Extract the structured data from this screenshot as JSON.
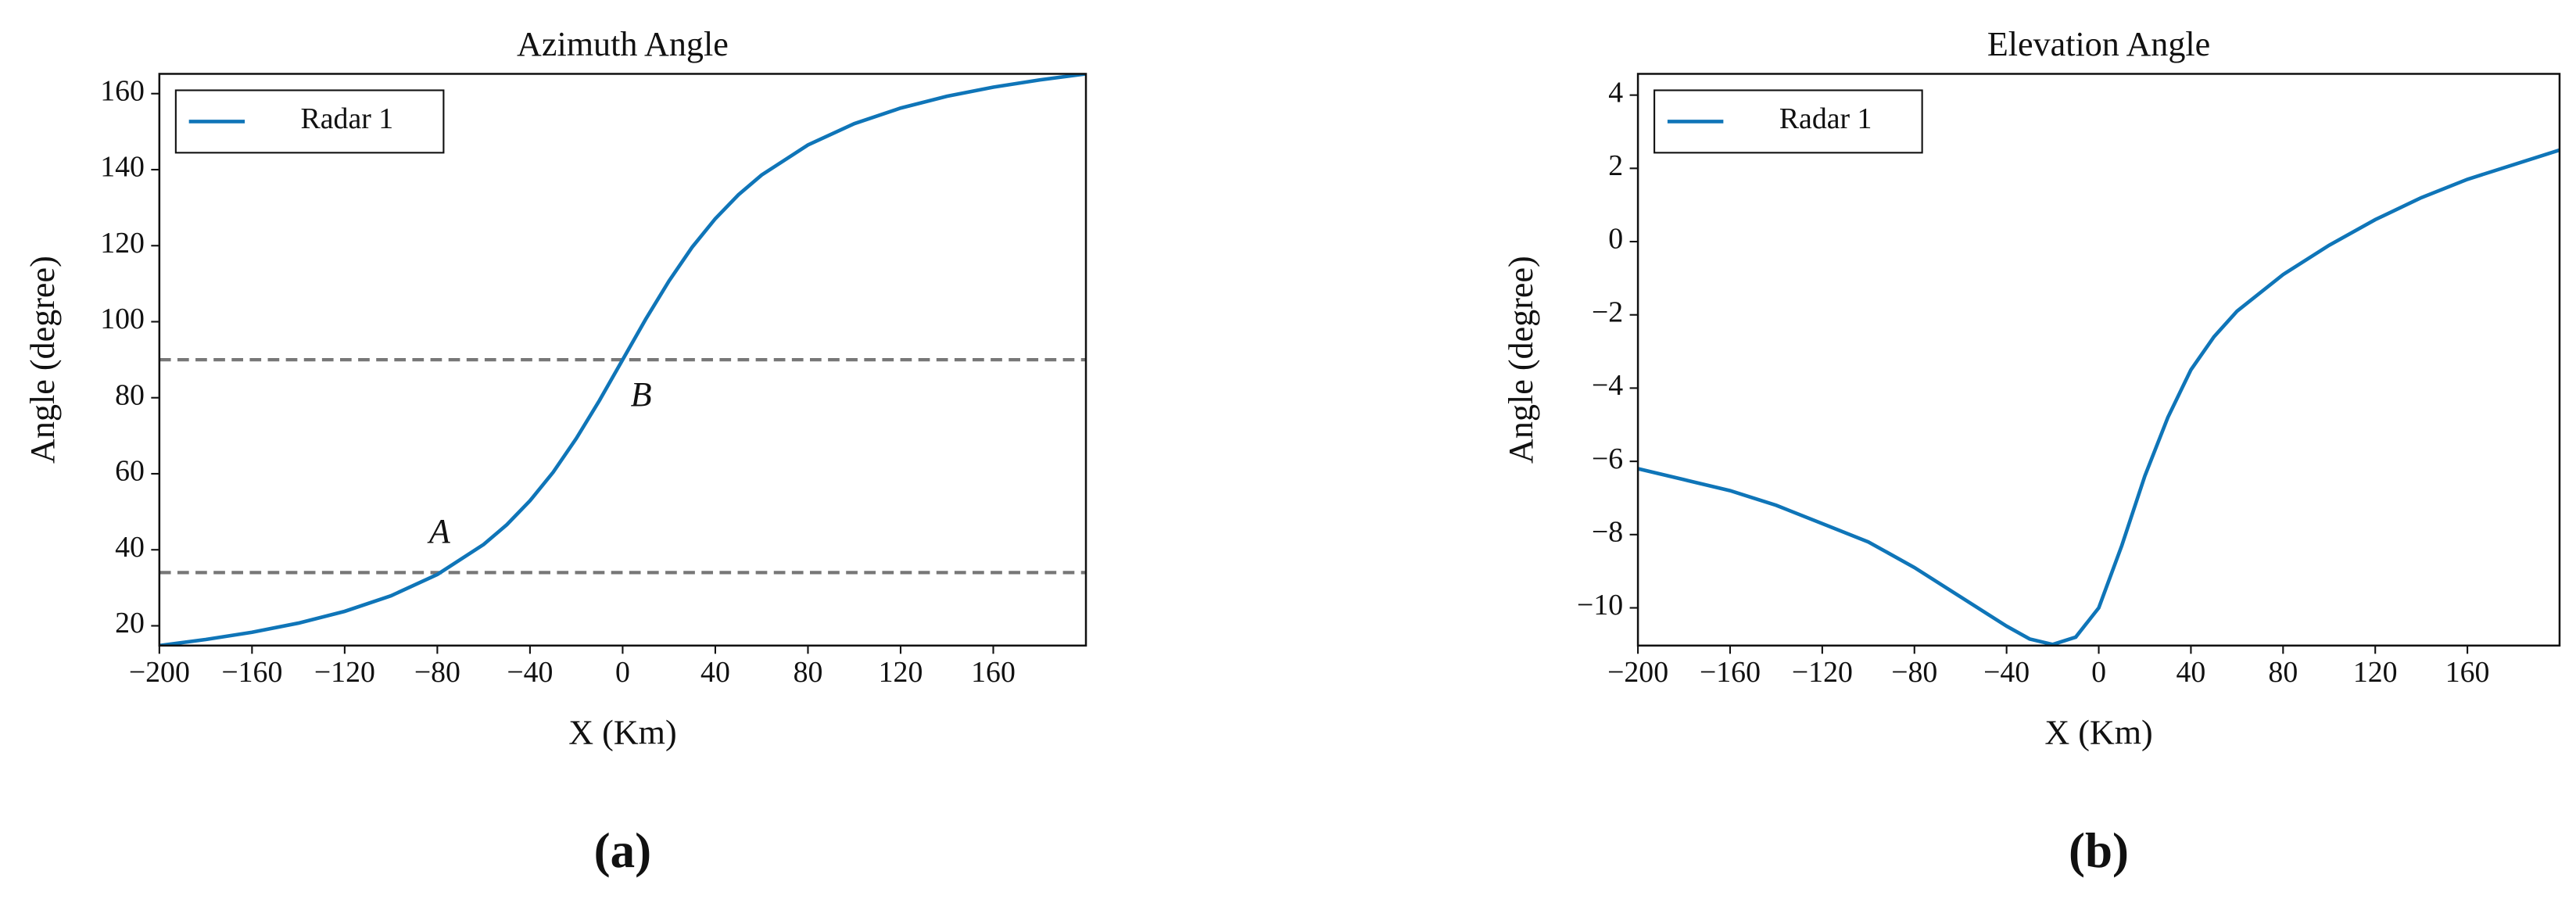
{
  "chart_data": [
    {
      "type": "line",
      "title": "Azimuth Angle",
      "xlabel": "X (Km)",
      "ylabel": "Angle (degree)",
      "caption": "(a)",
      "x": [
        -200,
        -180,
        -160,
        -140,
        -120,
        -100,
        -80,
        -60,
        -50,
        -40,
        -30,
        -20,
        -10,
        0,
        10,
        20,
        30,
        40,
        50,
        60,
        80,
        100,
        120,
        140,
        160,
        180,
        200
      ],
      "series": [
        {
          "name": "Radar 1",
          "color": "#0f75b8",
          "values": [
            14.8,
            16.4,
            18.3,
            20.7,
            23.8,
            27.9,
            33.5,
            41.4,
            46.6,
            52.9,
            60.4,
            69.3,
            79.3,
            90,
            100.7,
            110.7,
            119.6,
            127.1,
            133.4,
            138.6,
            146.5,
            152.1,
            156.2,
            159.3,
            161.7,
            163.6,
            165.2
          ]
        }
      ],
      "hlines": [
        90,
        34
      ],
      "annotations": [
        {
          "text": "A",
          "x": -79,
          "y": 44
        },
        {
          "text": "B",
          "x": 8,
          "y": 80
        }
      ],
      "xlim": [
        -200,
        200
      ],
      "xticks": [
        {
          "value": -200,
          "label": "−200"
        },
        {
          "value": -160,
          "label": "−160"
        },
        {
          "value": -120,
          "label": "−120"
        },
        {
          "value": -80,
          "label": "−80"
        },
        {
          "value": -40,
          "label": "−40"
        },
        0,
        40,
        80,
        120,
        160
      ],
      "ylim": [
        14.8,
        165.2
      ],
      "yticks": [
        20,
        40,
        60,
        80,
        100,
        120,
        140,
        160
      ],
      "legend": "upper left"
    },
    {
      "type": "line",
      "title": "Elevation Angle",
      "xlabel": "X (Km)",
      "ylabel": "Angle (degree)",
      "caption": "(b)",
      "x": [
        -200,
        -180,
        -160,
        -140,
        -120,
        -100,
        -80,
        -60,
        -40,
        -30,
        -20,
        -10,
        0,
        10,
        20,
        30,
        40,
        50,
        60,
        80,
        100,
        120,
        140,
        160,
        180,
        200
      ],
      "series": [
        {
          "name": "Radar 1",
          "color": "#0f75b8",
          "values": [
            -6.2,
            -6.5,
            -6.8,
            -7.2,
            -7.7,
            -8.2,
            -8.9,
            -9.7,
            -10.5,
            -10.85,
            -11.0,
            -10.8,
            -10.0,
            -8.3,
            -6.4,
            -4.8,
            -3.5,
            -2.6,
            -1.9,
            -0.9,
            -0.1,
            0.6,
            1.2,
            1.7,
            2.1,
            2.5
          ]
        }
      ],
      "xlim": [
        -200,
        200
      ],
      "xticks": [
        {
          "value": -200,
          "label": "−200"
        },
        {
          "value": -160,
          "label": "−160"
        },
        {
          "value": -120,
          "label": "−120"
        },
        {
          "value": -80,
          "label": "−80"
        },
        {
          "value": -40,
          "label": "−40"
        },
        0,
        40,
        80,
        120,
        160
      ],
      "ylim": [
        -11.03,
        4.58
      ],
      "yticks": [
        {
          "value": -10,
          "label": "−10"
        },
        {
          "value": -8,
          "label": "−8"
        },
        {
          "value": -6,
          "label": "−6"
        },
        {
          "value": -4,
          "label": "−4"
        },
        {
          "value": -2,
          "label": "−2"
        },
        0,
        2,
        4
      ],
      "legend": "upper left"
    }
  ]
}
